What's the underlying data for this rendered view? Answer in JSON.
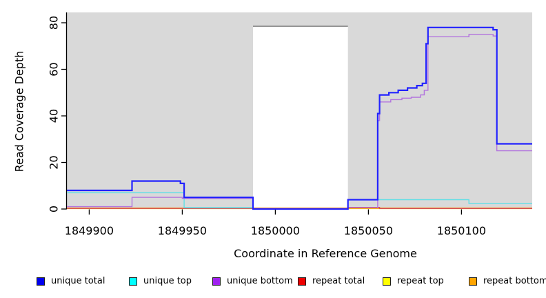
{
  "chart_data": {
    "type": "line",
    "subtype": "step-coverage-plot",
    "title": "",
    "xlabel": "Coordinate in Reference Genome",
    "ylabel": "Read Coverage Depth",
    "xlim": [
      1849888,
      1850138
    ],
    "ylim": [
      0,
      84
    ],
    "x_ticks": [
      1849900,
      1849950,
      1850000,
      1850050,
      1850100
    ],
    "y_ticks": [
      0,
      20,
      40,
      60,
      80
    ],
    "grid": false,
    "plot_background": "#d9d9d9",
    "outer_background": "#ffffff",
    "gap_region": {
      "note": "white unmappable region drawn over gray background",
      "x_start": 1849988,
      "x_end": 1850039,
      "y_top": 78.5,
      "fill": "#ffffff",
      "top_border": "#848484"
    },
    "legend_position": "bottom",
    "series": [
      {
        "name": "unique total",
        "color": "#2222ff",
        "width": 2.2,
        "z": 6,
        "points": [
          [
            1849888,
            8
          ],
          [
            1849923,
            12
          ],
          [
            1849949,
            11
          ],
          [
            1849951,
            5
          ],
          [
            1849988,
            0
          ],
          [
            1850039,
            4
          ],
          [
            1850055,
            41
          ],
          [
            1850056,
            49
          ],
          [
            1850061,
            50
          ],
          [
            1850066,
            51
          ],
          [
            1850071,
            52
          ],
          [
            1850076,
            53
          ],
          [
            1850079,
            54
          ],
          [
            1850081,
            71
          ],
          [
            1850082,
            78
          ],
          [
            1850117,
            77
          ],
          [
            1850119,
            28
          ],
          [
            1850138,
            28
          ]
        ]
      },
      {
        "name": "unique top",
        "color": "#5fdfe6",
        "width": 1.4,
        "z": 4,
        "points": [
          [
            1849888,
            7
          ],
          [
            1849951,
            0.6
          ],
          [
            1849988,
            0
          ],
          [
            1850039,
            4
          ],
          [
            1850104,
            2.4
          ],
          [
            1850138,
            2.4
          ]
        ]
      },
      {
        "name": "unique bottom",
        "color": "#b273de",
        "width": 1.4,
        "z": 5,
        "points": [
          [
            1849888,
            1
          ],
          [
            1849923,
            5
          ],
          [
            1849950,
            4.6
          ],
          [
            1849988,
            0
          ],
          [
            1850039,
            0.5
          ],
          [
            1850055,
            38
          ],
          [
            1850056,
            46
          ],
          [
            1850062,
            47
          ],
          [
            1850068,
            47.6
          ],
          [
            1850073,
            48
          ],
          [
            1850078,
            49
          ],
          [
            1850080,
            51
          ],
          [
            1850082,
            74
          ],
          [
            1850104,
            75
          ],
          [
            1850117,
            74.3
          ],
          [
            1850119,
            25
          ],
          [
            1850138,
            25
          ]
        ]
      },
      {
        "name": "repeat total",
        "color": "#d24f63",
        "width": 1.3,
        "z": 3,
        "points": [
          [
            1849888,
            0.25
          ],
          [
            1850039,
            0.7
          ],
          [
            1850056,
            0.2
          ],
          [
            1850138,
            0.2
          ]
        ]
      },
      {
        "name": "repeat top",
        "color": "#ffee00",
        "width": 1.2,
        "z": 1,
        "points": [
          [
            1849888,
            0.15
          ],
          [
            1850138,
            0.15
          ]
        ]
      },
      {
        "name": "repeat bottom",
        "color": "#ffa500",
        "width": 1.8,
        "z": 2,
        "points": [
          [
            1849888,
            0.35
          ],
          [
            1850138,
            0.35
          ]
        ]
      }
    ],
    "legend": [
      {
        "label": "unique total",
        "color": "#0000ee"
      },
      {
        "label": "unique top",
        "color": "#00ffff"
      },
      {
        "label": "unique bottom",
        "color": "#a020f0"
      },
      {
        "label": "repeat total",
        "color": "#ee0000"
      },
      {
        "label": "repeat top",
        "color": "#ffff00"
      },
      {
        "label": "repeat bottom",
        "color": "#ffa500"
      }
    ]
  },
  "labels": {
    "x_axis_title": "Coordinate in Reference Genome",
    "y_axis_title": "Read Coverage Depth"
  }
}
